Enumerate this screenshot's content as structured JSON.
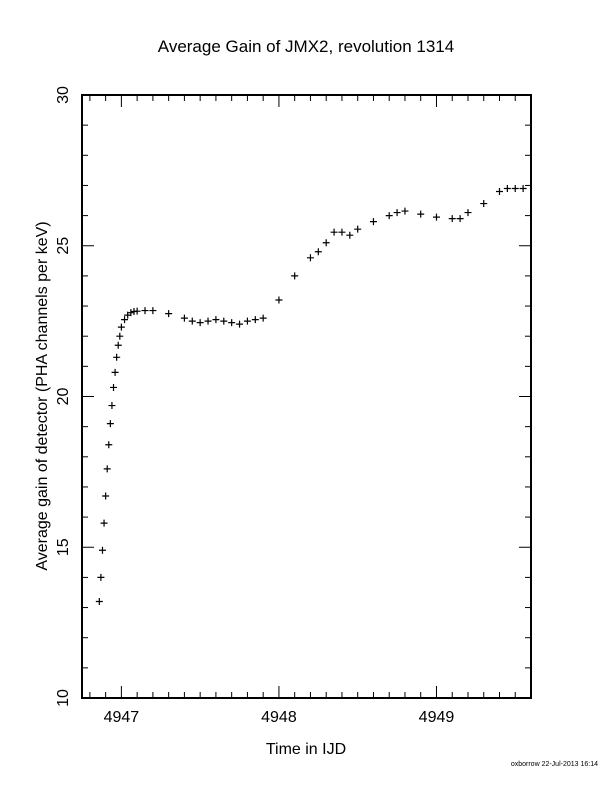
{
  "chart_data": {
    "type": "scatter",
    "title": "Average Gain of JMX2, revolution 1314",
    "xlabel": "Time in IJD",
    "ylabel": "Average gain of detector (PHA channels per keV)",
    "xlim": [
      4946.75,
      4949.6
    ],
    "ylim": [
      10,
      30
    ],
    "x_ticks": [
      "4947",
      "4948",
      "4949"
    ],
    "y_ticks": [
      "10",
      "15",
      "20",
      "25",
      "30"
    ],
    "marker": "plus",
    "grid": false,
    "series": [
      {
        "x": [
          4946.86,
          4946.87,
          4946.88,
          4946.89,
          4946.9,
          4946.91,
          4946.92,
          4946.93,
          4946.94,
          4946.95,
          4946.96,
          4946.97,
          4946.98,
          4946.99,
          4947.0,
          4947.02,
          4947.04,
          4947.06,
          4947.08,
          4947.1,
          4947.15,
          4947.2,
          4947.3,
          4947.4,
          4947.45,
          4947.5,
          4947.55,
          4947.6,
          4947.65,
          4947.7,
          4947.75,
          4947.8,
          4947.85,
          4947.9,
          4948.0,
          4948.1,
          4948.2,
          4948.25,
          4948.3,
          4948.35,
          4948.4,
          4948.45,
          4948.5,
          4948.6,
          4948.7,
          4948.75,
          4948.8,
          4948.9,
          4949.0,
          4949.1,
          4949.15,
          4949.2,
          4949.3,
          4949.4,
          4949.45,
          4949.5,
          4949.55
        ],
        "y": [
          13.2,
          14.0,
          14.9,
          15.8,
          16.7,
          17.6,
          18.4,
          19.1,
          19.7,
          20.3,
          20.8,
          21.3,
          21.7,
          22.0,
          22.3,
          22.55,
          22.7,
          22.78,
          22.82,
          22.83,
          22.85,
          22.85,
          22.75,
          22.6,
          22.5,
          22.45,
          22.5,
          22.55,
          22.5,
          22.45,
          22.4,
          22.5,
          22.55,
          22.6,
          23.2,
          24.0,
          24.6,
          24.8,
          25.1,
          25.45,
          25.45,
          25.35,
          25.55,
          25.8,
          26.0,
          26.1,
          26.15,
          26.05,
          25.95,
          25.9,
          25.9,
          26.1,
          26.4,
          26.8,
          26.9,
          26.9,
          26.9
        ]
      }
    ]
  },
  "footer": "oxborrow 22-Jul-2013 16:14"
}
